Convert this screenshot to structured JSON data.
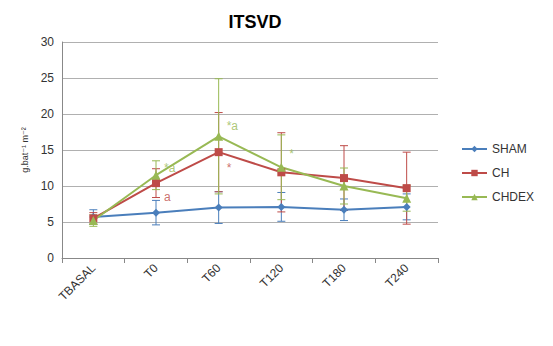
{
  "chart_data": {
    "type": "line",
    "title": "ITSVD",
    "y_label": "g.bat⁻¹ m⁻²",
    "categories": [
      "TBASAL",
      "T0",
      "T60",
      "T120",
      "T180",
      "T240"
    ],
    "series": [
      {
        "name": "SHAM",
        "color": "#4a7ebb",
        "marker": "diamond",
        "values": [
          5.7,
          6.3,
          7.0,
          7.1,
          6.7,
          7.1
        ],
        "errors": [
          1.0,
          1.7,
          2.2,
          2.0,
          1.5,
          1.8
        ]
      },
      {
        "name": "CH",
        "color": "#be4b48",
        "marker": "square",
        "values": [
          5.5,
          10.4,
          14.7,
          11.9,
          11.1,
          9.7
        ],
        "errors": [
          0.8,
          2.0,
          5.5,
          5.5,
          4.5,
          5.0
        ]
      },
      {
        "name": "CHDEX",
        "color": "#98b954",
        "marker": "triangle",
        "values": [
          5.2,
          11.5,
          16.9,
          12.6,
          10.0,
          8.3
        ],
        "errors": [
          0.8,
          2.0,
          8.0,
          4.5,
          2.5,
          1.8
        ]
      }
    ],
    "annotations": [
      {
        "text": "*a",
        "category": "T0",
        "y": 12.5,
        "series": "CHDEX"
      },
      {
        "text": "a",
        "category": "T0",
        "y": 8.5,
        "series": "CH"
      },
      {
        "text": "*a",
        "category": "T60",
        "y": 18.3,
        "series": "CHDEX"
      },
      {
        "text": "*",
        "category": "T60",
        "y": 12.5,
        "series": "CH"
      },
      {
        "text": "*",
        "category": "T120",
        "y": 14.5,
        "series": "CHDEX"
      }
    ],
    "ylim": [
      0,
      30
    ],
    "yticks": [
      0,
      5,
      10,
      15,
      20,
      25,
      30
    ],
    "grid": true,
    "legend": "right"
  }
}
